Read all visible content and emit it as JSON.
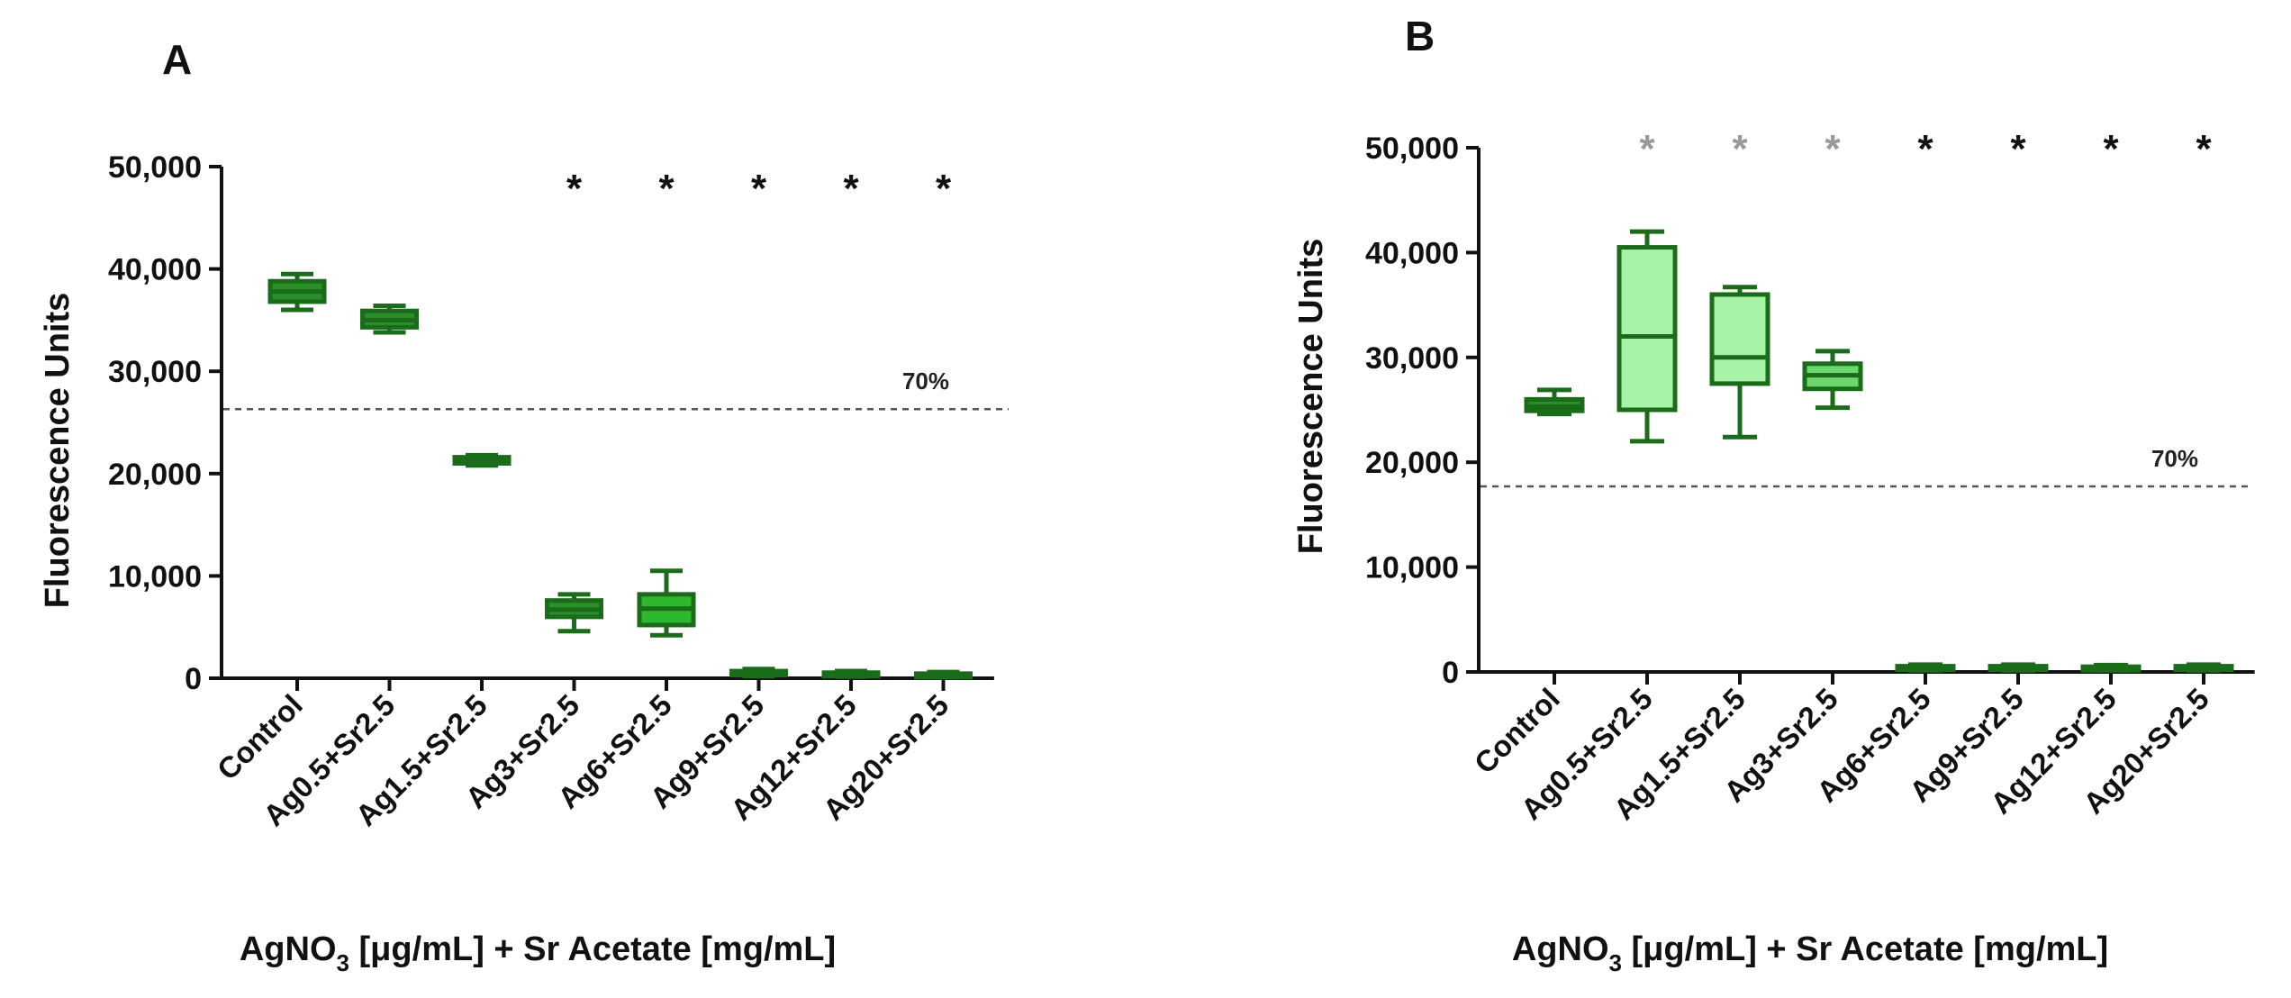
{
  "chart_data": [
    {
      "panel": "A",
      "type": "box",
      "ylabel": "Fluorescence Units",
      "xlabel": "AgNO3 [μg/mL] + Sr Acetate [mg/mL]",
      "xlabel_parts": {
        "pre": "AgNO",
        "sub": "3",
        "post": " [μg/mL] + Sr Acetate [mg/mL]"
      },
      "ylim": [
        0,
        50000
      ],
      "yticks": [
        0,
        10000,
        20000,
        30000,
        40000,
        50000
      ],
      "ytick_labels": [
        "0",
        "10,000",
        "20,000",
        "30,000",
        "40,000",
        "50,000"
      ],
      "categories": [
        "Control",
        "Ag0.5+Sr2.5",
        "Ag1.5+Sr2.5",
        "Ag3+Sr2.5",
        "Ag6+Sr2.5",
        "Ag9+Sr2.5",
        "Ag12+Sr2.5",
        "Ag20+Sr2.5"
      ],
      "boxes": [
        {
          "min": 36000,
          "q1": 36800,
          "median": 37800,
          "q3": 38800,
          "max": 39500
        },
        {
          "min": 33800,
          "q1": 34300,
          "median": 35000,
          "q3": 35900,
          "max": 36400
        },
        {
          "min": 20800,
          "q1": 21000,
          "median": 21300,
          "q3": 21600,
          "max": 21800
        },
        {
          "min": 4600,
          "q1": 6000,
          "median": 6700,
          "q3": 7600,
          "max": 8200
        },
        {
          "min": 4200,
          "q1": 5200,
          "median": 6800,
          "q3": 8200,
          "max": 10500
        },
        {
          "min": 200,
          "q1": 300,
          "median": 500,
          "q3": 700,
          "max": 900
        },
        {
          "min": 150,
          "q1": 250,
          "median": 400,
          "q3": 550,
          "max": 700
        },
        {
          "min": 100,
          "q1": 200,
          "median": 300,
          "q3": 450,
          "max": 600
        }
      ],
      "fill_colors": [
        "#2a8f2a",
        "#2a8f2a",
        "#2a8f2a",
        "#2a8f2a",
        "#2eb82e",
        "#2a8f2a",
        "#2a8f2a",
        "#2a8f2a"
      ],
      "threshold": {
        "value": 26300,
        "label": "70%"
      },
      "significance": [
        "",
        "",
        "",
        "*",
        "*",
        "*",
        "*",
        "*"
      ],
      "significance_colors": [
        "#111111",
        "#111111",
        "#111111",
        "#111111",
        "#111111",
        "#111111",
        "#111111",
        "#111111"
      ],
      "significance_level": 48500
    },
    {
      "panel": "B",
      "type": "box",
      "ylabel": "Fluorescence Units",
      "xlabel": "AgNO3 [μg/mL] + Sr Acetate [mg/mL]",
      "xlabel_parts": {
        "pre": "AgNO",
        "sub": "3",
        "post": " [μg/mL] + Sr Acetate [mg/mL]"
      },
      "ylim": [
        0,
        50000
      ],
      "yticks": [
        0,
        10000,
        20000,
        30000,
        40000,
        50000
      ],
      "ytick_labels": [
        "0",
        "10,000",
        "20,000",
        "30,000",
        "40,000",
        "50,000"
      ],
      "categories": [
        "Control",
        "Ag0.5+Sr2.5",
        "Ag1.5+Sr2.5",
        "Ag3+Sr2.5",
        "Ag6+Sr2.5",
        "Ag9+Sr2.5",
        "Ag12+Sr2.5",
        "Ag20+Sr2.5"
      ],
      "boxes": [
        {
          "min": 24600,
          "q1": 24900,
          "median": 25300,
          "q3": 26000,
          "max": 26900
        },
        {
          "min": 22000,
          "q1": 25000,
          "median": 32000,
          "q3": 40500,
          "max": 42000
        },
        {
          "min": 22400,
          "q1": 27500,
          "median": 30000,
          "q3": 36000,
          "max": 36700
        },
        {
          "min": 25200,
          "q1": 27000,
          "median": 28300,
          "q3": 29400,
          "max": 30600
        },
        {
          "min": 150,
          "q1": 250,
          "median": 400,
          "q3": 550,
          "max": 700
        },
        {
          "min": 150,
          "q1": 250,
          "median": 400,
          "q3": 550,
          "max": 700
        },
        {
          "min": 150,
          "q1": 250,
          "median": 350,
          "q3": 500,
          "max": 650
        },
        {
          "min": 150,
          "q1": 250,
          "median": 400,
          "q3": 550,
          "max": 700
        }
      ],
      "fill_colors": [
        "#2a8f2a",
        "#a6f2a6",
        "#a6f2a6",
        "#6ed66e",
        "#2a8f2a",
        "#2a8f2a",
        "#2a8f2a",
        "#2a8f2a"
      ],
      "threshold": {
        "value": 17700,
        "label": "70%"
      },
      "significance": [
        "",
        "*",
        "*",
        "*",
        "*",
        "*",
        "*",
        "*"
      ],
      "significance_colors": [
        "#111111",
        "#999999",
        "#999999",
        "#999999",
        "#111111",
        "#111111",
        "#111111",
        "#111111"
      ],
      "significance_level": 50500
    }
  ],
  "colors": {
    "stroke": "#1a6b1a",
    "axis": "#111111",
    "threshold": "#555555"
  }
}
